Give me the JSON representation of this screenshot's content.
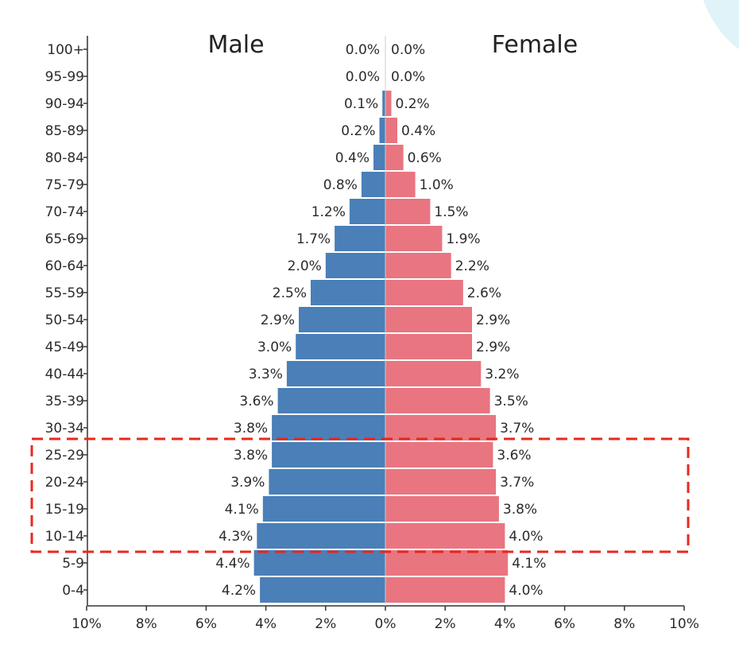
{
  "chart_data": {
    "type": "bar",
    "subtype": "population-pyramid",
    "orientation": "horizontal",
    "categories": [
      "100+",
      "95-99",
      "90-94",
      "85-89",
      "80-84",
      "75-79",
      "70-74",
      "65-69",
      "60-64",
      "55-59",
      "50-54",
      "45-49",
      "40-44",
      "35-39",
      "30-34",
      "25-29",
      "20-24",
      "15-19",
      "10-14",
      "5-9",
      "0-4"
    ],
    "series": [
      {
        "name": "Male",
        "side": "left",
        "color": "#4a7fb8",
        "values": [
          0.0,
          0.0,
          0.1,
          0.2,
          0.4,
          0.8,
          1.2,
          1.7,
          2.0,
          2.5,
          2.9,
          3.0,
          3.3,
          3.6,
          3.8,
          3.8,
          3.9,
          4.1,
          4.3,
          4.4,
          4.2
        ],
        "labels": [
          "0.0%",
          "0.0%",
          "0.1%",
          "0.2%",
          "0.4%",
          "0.8%",
          "1.2%",
          "1.7%",
          "2.0%",
          "2.5%",
          "2.9%",
          "3.0%",
          "3.3%",
          "3.6%",
          "3.8%",
          "3.8%",
          "3.9%",
          "4.1%",
          "4.3%",
          "4.4%",
          "4.2%"
        ]
      },
      {
        "name": "Female",
        "side": "right",
        "color": "#e97580",
        "values": [
          0.0,
          0.0,
          0.2,
          0.4,
          0.6,
          1.0,
          1.5,
          1.9,
          2.2,
          2.6,
          2.9,
          2.9,
          3.2,
          3.5,
          3.7,
          3.6,
          3.7,
          3.8,
          4.0,
          4.1,
          4.0
        ],
        "labels": [
          "0.0%",
          "0.0%",
          "0.2%",
          "0.4%",
          "0.6%",
          "1.0%",
          "1.5%",
          "1.9%",
          "2.2%",
          "2.6%",
          "2.9%",
          "2.9%",
          "3.2%",
          "3.5%",
          "3.7%",
          "3.6%",
          "3.7%",
          "3.8%",
          "4.0%",
          "4.1%",
          "4.0%"
        ]
      }
    ],
    "x_ticks": [
      {
        "value": -10,
        "label": "10%"
      },
      {
        "value": -8,
        "label": "8%"
      },
      {
        "value": -6,
        "label": "6%"
      },
      {
        "value": -4,
        "label": "4%"
      },
      {
        "value": -2,
        "label": "2%"
      },
      {
        "value": 0,
        "label": "0%"
      },
      {
        "value": 2,
        "label": "2%"
      },
      {
        "value": 4,
        "label": "4%"
      },
      {
        "value": 6,
        "label": "6%"
      },
      {
        "value": 8,
        "label": "8%"
      },
      {
        "value": 10,
        "label": "10%"
      }
    ],
    "xlim": [
      -10,
      10
    ],
    "highlight": {
      "categories": [
        "25-29",
        "20-24",
        "15-19",
        "10-14"
      ],
      "style": "dashed-box",
      "color": "#e8281e"
    },
    "decoration_color": "#dff3f8",
    "grid": false
  }
}
